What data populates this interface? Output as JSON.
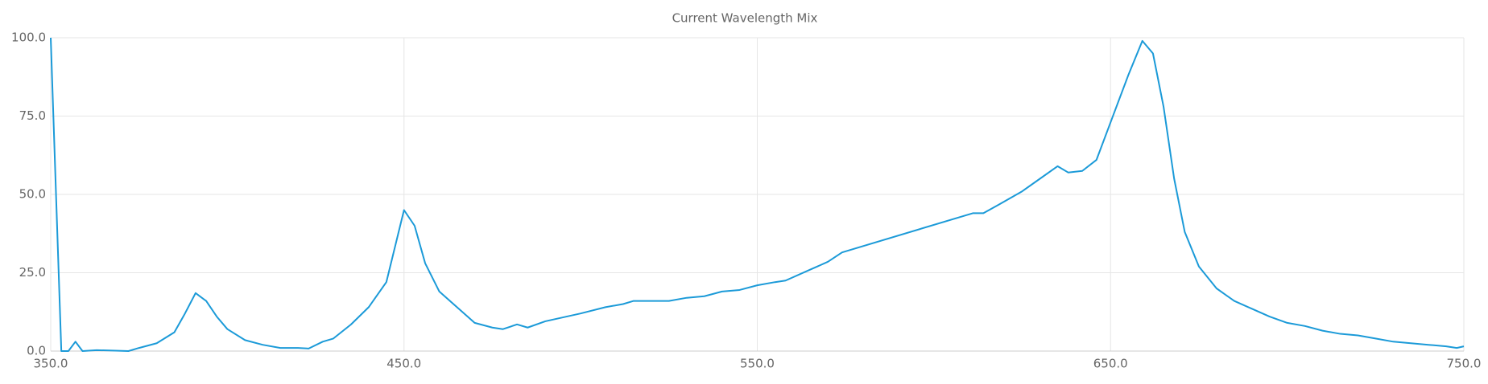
{
  "chart_data": {
    "type": "line",
    "title": "Current Wavelength Mix",
    "color": "#1b9ad8",
    "grid": true,
    "x": [
      350,
      353,
      355,
      357,
      359,
      363,
      372,
      375,
      380,
      385,
      388,
      391,
      394,
      397,
      400,
      405,
      410,
      415,
      420,
      423,
      427,
      430,
      435,
      440,
      445,
      450,
      453,
      456,
      460,
      465,
      470,
      475,
      478,
      482,
      485,
      490,
      500,
      507,
      512,
      515,
      525,
      530,
      535,
      540,
      545,
      550,
      555,
      558,
      565,
      570,
      574,
      611,
      614,
      618,
      625,
      630,
      635,
      638,
      642,
      646,
      650,
      655,
      659,
      662,
      665,
      668,
      671,
      675,
      680,
      685,
      690,
      695,
      700,
      705,
      710,
      715,
      720,
      725,
      730,
      735,
      740,
      745,
      748,
      750
    ],
    "values": [
      100,
      0,
      0,
      3,
      0,
      0.3,
      0,
      1,
      2.5,
      6,
      12,
      18.5,
      16,
      11,
      7,
      3.5,
      2,
      1,
      1,
      0.8,
      3,
      4,
      8.5,
      14,
      22,
      45,
      40,
      28,
      19,
      14,
      9,
      7.5,
      7,
      8.5,
      7.5,
      9.5,
      12,
      14,
      15,
      16,
      16,
      17,
      17.5,
      19,
      19.5,
      21,
      22,
      22.5,
      26,
      28.5,
      31.5,
      44,
      44,
      46.5,
      51,
      55,
      59,
      57,
      57.5,
      61,
      73,
      88,
      99,
      95,
      78,
      55,
      38,
      27,
      20,
      16,
      13.5,
      11,
      9,
      8,
      6.5,
      5.5,
      5,
      4,
      3,
      2.5,
      2,
      1.5,
      1,
      1.5
    ],
    "xlim": [
      350,
      750
    ],
    "xticks": [
      {
        "value": 350,
        "label": "350.0"
      },
      {
        "value": 450,
        "label": "450.0"
      },
      {
        "value": 550,
        "label": "550.0"
      },
      {
        "value": 650,
        "label": "650.0"
      },
      {
        "value": 750,
        "label": "750.0"
      }
    ],
    "ylim": [
      0,
      100
    ],
    "yticks": [
      {
        "value": 0,
        "label": "0.0"
      },
      {
        "value": 25,
        "label": "25.0"
      },
      {
        "value": 50,
        "label": "50.0"
      },
      {
        "value": 75,
        "label": "75.0"
      },
      {
        "value": 100,
        "label": "100.0"
      }
    ]
  }
}
